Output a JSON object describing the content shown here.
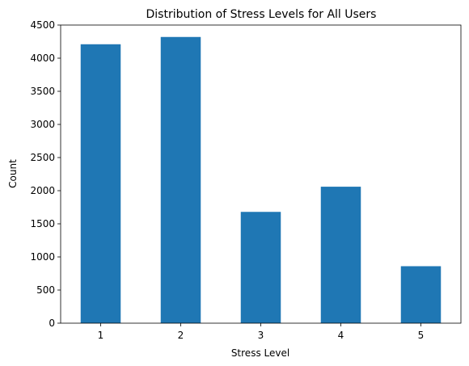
{
  "chart_data": {
    "type": "bar",
    "title": "Distribution of Stress Levels for All Users",
    "xlabel": "Stress Level",
    "ylabel": "Count",
    "categories": [
      "1",
      "2",
      "3",
      "4",
      "5"
    ],
    "values": [
      4210,
      4320,
      1680,
      2060,
      860
    ],
    "ylim": [
      0,
      4500
    ],
    "yticks": [
      0,
      500,
      1000,
      1500,
      2000,
      2500,
      3000,
      3500,
      4000,
      4500
    ],
    "bar_color": "#1f77b4",
    "grid": false,
    "legend": "none"
  }
}
